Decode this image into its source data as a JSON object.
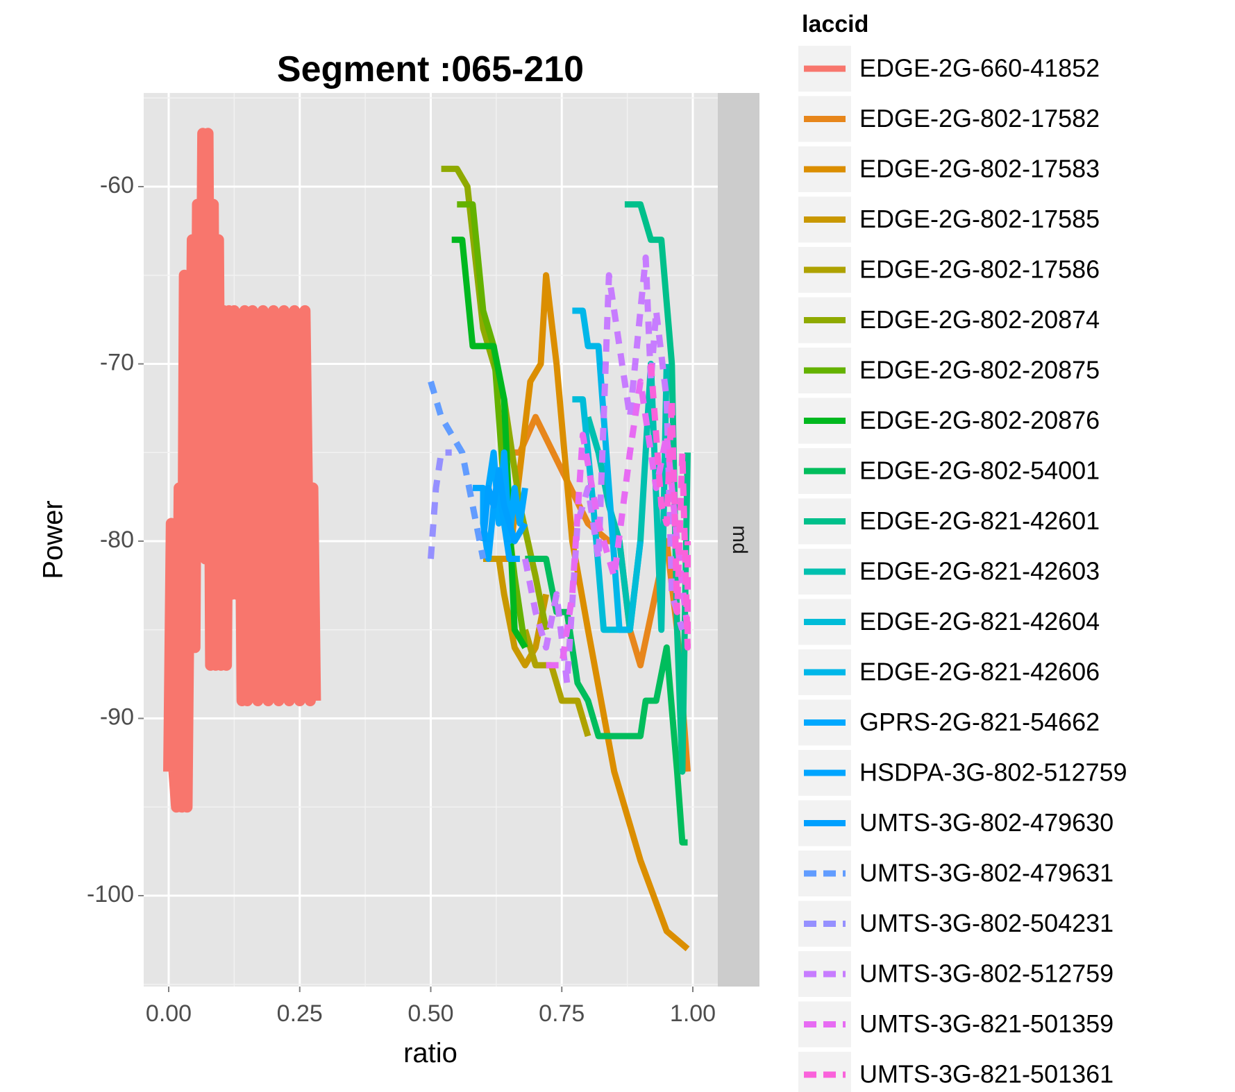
{
  "chart_data": {
    "type": "line",
    "title": "Segment :065-210",
    "xlabel": "ratio",
    "ylabel": "Power",
    "xlim": [
      -0.05,
      1.05
    ],
    "ylim": [
      -105,
      -54
    ],
    "x_ticks": [
      0.0,
      0.25,
      0.5,
      0.75,
      1.0
    ],
    "x_tick_labels": [
      "0.00",
      "0.25",
      "0.50",
      "0.75",
      "1.00"
    ],
    "y_ticks": [
      -100,
      -90,
      -80,
      -70,
      -60
    ],
    "y_tick_labels": [
      "-100",
      "-90",
      "-80",
      "-70",
      "-60"
    ],
    "grid": true,
    "facet_strip": "md",
    "legend": {
      "title": "laccid",
      "position": "right"
    },
    "series": [
      {
        "name": "EDGE-2G-660-41852",
        "color": "#F8766D",
        "style": "solid",
        "points": [
          [
            0.0,
            -93
          ],
          [
            0.005,
            -79
          ],
          [
            0.01,
            -93
          ],
          [
            0.015,
            -95
          ],
          [
            0.02,
            -77
          ],
          [
            0.025,
            -95
          ],
          [
            0.03,
            -65
          ],
          [
            0.035,
            -95
          ],
          [
            0.04,
            -79
          ],
          [
            0.045,
            -63
          ],
          [
            0.05,
            -86
          ],
          [
            0.055,
            -61
          ],
          [
            0.06,
            -79
          ],
          [
            0.065,
            -57
          ],
          [
            0.07,
            -81
          ],
          [
            0.075,
            -57
          ],
          [
            0.08,
            -87
          ],
          [
            0.085,
            -61
          ],
          [
            0.09,
            -87
          ],
          [
            0.095,
            -63
          ],
          [
            0.1,
            -87
          ],
          [
            0.105,
            -67
          ],
          [
            0.11,
            -87
          ],
          [
            0.115,
            -67
          ],
          [
            0.12,
            -83
          ],
          [
            0.125,
            -67
          ],
          [
            0.13,
            -83
          ],
          [
            0.135,
            -69
          ],
          [
            0.14,
            -89
          ],
          [
            0.145,
            -67
          ],
          [
            0.15,
            -89
          ],
          [
            0.16,
            -67
          ],
          [
            0.17,
            -89
          ],
          [
            0.18,
            -67
          ],
          [
            0.19,
            -89
          ],
          [
            0.2,
            -67
          ],
          [
            0.21,
            -89
          ],
          [
            0.22,
            -67
          ],
          [
            0.23,
            -89
          ],
          [
            0.24,
            -67
          ],
          [
            0.25,
            -89
          ],
          [
            0.26,
            -67
          ],
          [
            0.27,
            -89
          ],
          [
            0.275,
            -77
          ],
          [
            0.28,
            -89
          ]
        ]
      },
      {
        "name": "EDGE-2G-802-17582",
        "color": "#E7861B",
        "style": "solid",
        "points": [
          [
            0.65,
            -75
          ],
          [
            0.67,
            -75
          ],
          [
            0.7,
            -73
          ],
          [
            0.75,
            -76
          ],
          [
            0.8,
            -79
          ],
          [
            0.84,
            -80
          ],
          [
            0.86,
            -80
          ],
          [
            0.88,
            -85
          ],
          [
            0.9,
            -87
          ],
          [
            0.95,
            -80
          ],
          [
            0.97,
            -85
          ],
          [
            0.99,
            -93
          ]
        ]
      },
      {
        "name": "EDGE-2G-802-17583",
        "color": "#DB8E00",
        "style": "solid",
        "points": [
          [
            0.63,
            -81
          ],
          [
            0.65,
            -81
          ],
          [
            0.67,
            -76
          ],
          [
            0.69,
            -71
          ],
          [
            0.71,
            -70
          ],
          [
            0.72,
            -65
          ],
          [
            0.74,
            -70
          ],
          [
            0.77,
            -80
          ],
          [
            0.8,
            -85
          ],
          [
            0.85,
            -93
          ],
          [
            0.9,
            -98
          ],
          [
            0.95,
            -102
          ],
          [
            0.99,
            -103
          ]
        ]
      },
      {
        "name": "EDGE-2G-802-17585",
        "color": "#C99800",
        "style": "solid",
        "points": [
          [
            0.6,
            -81
          ],
          [
            0.63,
            -81
          ],
          [
            0.64,
            -83
          ],
          [
            0.66,
            -86
          ],
          [
            0.68,
            -87
          ],
          [
            0.7,
            -86
          ],
          [
            0.72,
            -83
          ]
        ]
      },
      {
        "name": "EDGE-2G-802-17586",
        "color": "#AEA200",
        "style": "solid",
        "points": [
          [
            0.68,
            -85
          ],
          [
            0.7,
            -87
          ],
          [
            0.73,
            -87
          ],
          [
            0.75,
            -89
          ],
          [
            0.78,
            -89
          ],
          [
            0.8,
            -91
          ]
        ]
      },
      {
        "name": "EDGE-2G-802-20874",
        "color": "#8FAA00",
        "style": "solid",
        "points": [
          [
            0.52,
            -59
          ],
          [
            0.55,
            -59
          ],
          [
            0.57,
            -60
          ],
          [
            0.6,
            -68
          ],
          [
            0.64,
            -72
          ],
          [
            0.67,
            -78
          ],
          [
            0.7,
            -82
          ],
          [
            0.72,
            -85
          ]
        ]
      },
      {
        "name": "EDGE-2G-802-20875",
        "color": "#64B200",
        "style": "solid",
        "points": [
          [
            0.55,
            -61
          ],
          [
            0.58,
            -61
          ],
          [
            0.6,
            -67
          ],
          [
            0.62,
            -69
          ],
          [
            0.64,
            -77
          ],
          [
            0.66,
            -82
          ],
          [
            0.68,
            -86
          ]
        ]
      },
      {
        "name": "EDGE-2G-802-20876",
        "color": "#00B81F",
        "style": "solid",
        "points": [
          [
            0.54,
            -63
          ],
          [
            0.56,
            -63
          ],
          [
            0.58,
            -69
          ],
          [
            0.62,
            -69
          ],
          [
            0.64,
            -72
          ],
          [
            0.66,
            -85
          ],
          [
            0.68,
            -86
          ]
        ]
      },
      {
        "name": "EDGE-2G-802-54001",
        "color": "#00BD5C",
        "style": "solid",
        "points": [
          [
            0.68,
            -81
          ],
          [
            0.72,
            -81
          ],
          [
            0.74,
            -84
          ],
          [
            0.76,
            -84
          ],
          [
            0.78,
            -88
          ],
          [
            0.8,
            -89
          ],
          [
            0.82,
            -91
          ],
          [
            0.87,
            -91
          ],
          [
            0.9,
            -91
          ],
          [
            0.91,
            -89
          ],
          [
            0.93,
            -89
          ],
          [
            0.95,
            -86
          ],
          [
            0.97,
            -93
          ],
          [
            0.98,
            -97
          ],
          [
            0.99,
            -97
          ]
        ]
      },
      {
        "name": "EDGE-2G-821-42601",
        "color": "#00C08B",
        "style": "solid",
        "points": [
          [
            0.87,
            -61
          ],
          [
            0.9,
            -61
          ],
          [
            0.91,
            -62
          ],
          [
            0.92,
            -63
          ],
          [
            0.94,
            -63
          ],
          [
            0.96,
            -70
          ],
          [
            0.97,
            -85
          ],
          [
            0.98,
            -93
          ],
          [
            0.99,
            -75
          ]
        ]
      },
      {
        "name": "EDGE-2G-821-42603",
        "color": "#00C0AF",
        "style": "solid",
        "points": [
          [
            0.8,
            -73
          ],
          [
            0.82,
            -75
          ],
          [
            0.84,
            -78
          ],
          [
            0.86,
            -80
          ],
          [
            0.88,
            -85
          ],
          [
            0.9,
            -80
          ],
          [
            0.92,
            -70
          ],
          [
            0.94,
            -85
          ],
          [
            0.95,
            -70
          ]
        ]
      },
      {
        "name": "EDGE-2G-821-42604",
        "color": "#00BCD8",
        "style": "solid",
        "points": [
          [
            0.77,
            -72
          ],
          [
            0.79,
            -72
          ],
          [
            0.81,
            -78
          ],
          [
            0.83,
            -85
          ],
          [
            0.88,
            -85
          ],
          [
            0.9,
            -80
          ]
        ]
      },
      {
        "name": "EDGE-2G-821-42606",
        "color": "#00B7E9",
        "style": "solid",
        "points": [
          [
            0.77,
            -67
          ],
          [
            0.79,
            -67
          ],
          [
            0.8,
            -69
          ],
          [
            0.82,
            -69
          ],
          [
            0.84,
            -77
          ],
          [
            0.86,
            -85
          ],
          [
            0.88,
            -85
          ]
        ]
      },
      {
        "name": "GPRS-2G-821-54662",
        "color": "#00A8FF",
        "style": "solid",
        "points": [
          [
            0.61,
            -77
          ],
          [
            0.62,
            -75
          ],
          [
            0.63,
            -79
          ],
          [
            0.64,
            -75
          ],
          [
            0.65,
            -80
          ],
          [
            0.66,
            -77
          ],
          [
            0.67,
            -79
          ],
          [
            0.68,
            -77
          ]
        ]
      },
      {
        "name": "HSDPA-3G-802-512759",
        "color": "#00A5FF",
        "style": "solid",
        "points": [
          [
            0.58,
            -77
          ],
          [
            0.6,
            -77
          ],
          [
            0.6,
            -79
          ],
          [
            0.61,
            -81
          ],
          [
            0.62,
            -78
          ],
          [
            0.63,
            -77
          ],
          [
            0.64,
            -79
          ],
          [
            0.65,
            -81
          ],
          [
            0.67,
            -81
          ]
        ]
      },
      {
        "name": "UMTS-3G-802-479630",
        "color": "#00A0FF",
        "style": "solid",
        "points": [
          [
            0.6,
            -80
          ],
          [
            0.61,
            -77
          ],
          [
            0.62,
            -78
          ],
          [
            0.63,
            -76
          ],
          [
            0.64,
            -78
          ],
          [
            0.66,
            -80
          ],
          [
            0.68,
            -79
          ]
        ]
      },
      {
        "name": "UMTS-3G-802-479631",
        "color": "#619CFF",
        "style": "dashed",
        "points": [
          [
            0.5,
            -71
          ],
          [
            0.52,
            -73
          ],
          [
            0.54,
            -74
          ],
          [
            0.56,
            -75
          ],
          [
            0.58,
            -78
          ],
          [
            0.6,
            -81
          ]
        ]
      },
      {
        "name": "UMTS-3G-802-504231",
        "color": "#9590FF",
        "style": "dashed",
        "points": [
          [
            0.5,
            -81
          ],
          [
            0.51,
            -77
          ],
          [
            0.52,
            -75
          ],
          [
            0.54,
            -75
          ]
        ]
      },
      {
        "name": "UMTS-3G-802-512759",
        "color": "#C77CFF",
        "style": "dashed",
        "points": [
          [
            0.68,
            -81
          ],
          [
            0.7,
            -84
          ],
          [
            0.72,
            -86
          ],
          [
            0.74,
            -83
          ],
          [
            0.76,
            -88
          ],
          [
            0.78,
            -79
          ],
          [
            0.8,
            -77
          ],
          [
            0.82,
            -81
          ],
          [
            0.84,
            -65
          ],
          [
            0.86,
            -69
          ],
          [
            0.88,
            -73
          ],
          [
            0.9,
            -67
          ],
          [
            0.91,
            -64
          ],
          [
            0.92,
            -71
          ],
          [
            0.93,
            -67
          ],
          [
            0.95,
            -72
          ],
          [
            0.96,
            -83
          ],
          [
            0.98,
            -85
          ]
        ]
      },
      {
        "name": "UMTS-3G-821-501359",
        "color": "#E76BF3",
        "style": "dashed",
        "points": [
          [
            0.72,
            -87
          ],
          [
            0.75,
            -87
          ],
          [
            0.77,
            -83
          ],
          [
            0.79,
            -74
          ],
          [
            0.82,
            -79
          ],
          [
            0.85,
            -82
          ],
          [
            0.88,
            -75
          ],
          [
            0.9,
            -71
          ],
          [
            0.93,
            -77
          ],
          [
            0.95,
            -74
          ],
          [
            0.97,
            -80
          ],
          [
            0.99,
            -85
          ]
        ]
      },
      {
        "name": "UMTS-3G-821-501361",
        "color": "#FA62DB",
        "style": "dashed",
        "points": [
          [
            0.92,
            -70
          ],
          [
            0.94,
            -78
          ],
          [
            0.95,
            -79
          ],
          [
            0.96,
            -72
          ],
          [
            0.97,
            -84
          ],
          [
            0.98,
            -75
          ],
          [
            0.99,
            -86
          ],
          [
            0.99,
            -80
          ]
        ]
      }
    ]
  }
}
